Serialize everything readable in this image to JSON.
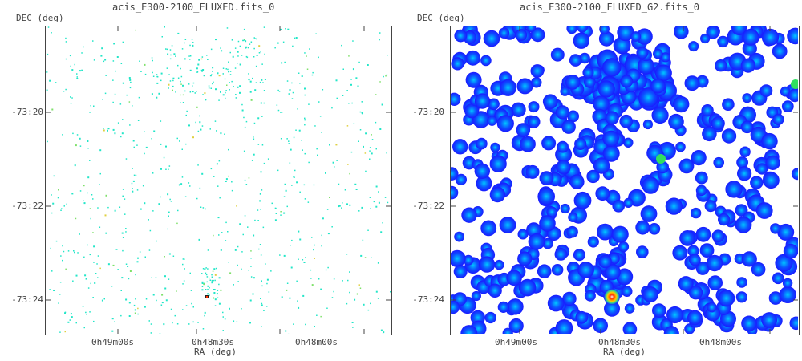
{
  "panels": [
    {
      "title": "acis_E300-2100_FLUXED.fits_0",
      "ylabel": "DEC (deg)",
      "xlabel": "RA (deg)",
      "yticks": [
        "-73:20",
        "-73:22",
        "-73:24"
      ],
      "xticks": [
        "0h49m00s",
        "0h48m30s",
        "0h48m00s"
      ],
      "style": "raw counts, sparse cyan pixels on white"
    },
    {
      "title": "acis_E300-2100_FLUXED_G2.fits_0",
      "ylabel": "DEC (deg)",
      "xlabel": "RA (deg)",
      "yticks": [
        "-73:20",
        "-73:22",
        "-73:24"
      ],
      "xticks": [
        "0h49m00s",
        "0h48m30s",
        "0h48m00s"
      ],
      "style": "gaussian smoothed, blue blobs on white"
    }
  ],
  "colors": {
    "frame": "#444444",
    "sparse_pixel": "#22e6c8",
    "blob_outer": "#1a1aff",
    "blob_inner": "#00c8ff",
    "hot": "#ff3300"
  }
}
